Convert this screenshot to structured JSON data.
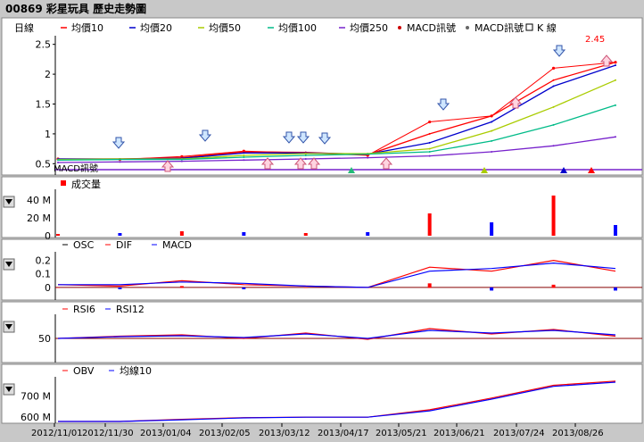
{
  "header": {
    "title": "00869 彩星玩具  歷史走勢圖"
  },
  "colors": {
    "bg": "#c8c8c8",
    "panel": "#ffffff",
    "ma10": "#ff0000",
    "ma20": "#0000cc",
    "ma50": "#aacc00",
    "ma100": "#00bb88",
    "ma250": "#7722cc",
    "up": "#ff0000",
    "down": "#0000ff"
  },
  "price_panel": {
    "period_label": "日線",
    "legend": [
      {
        "label": "均價10",
        "color": "#ff0000",
        "kind": "line"
      },
      {
        "label": "均價20",
        "color": "#0000cc",
        "kind": "line"
      },
      {
        "label": "均價50",
        "color": "#aacc00",
        "kind": "line"
      },
      {
        "label": "均價100",
        "color": "#00bb88",
        "kind": "line"
      },
      {
        "label": "均價250",
        "color": "#7722cc",
        "kind": "line"
      },
      {
        "label": "MACD訊號",
        "color": "#cc0000",
        "kind": "dot"
      },
      {
        "label": "MACD訊號",
        "color": "#666666",
        "kind": "dot"
      },
      {
        "label": "K 線",
        "color": "#000000",
        "kind": "box"
      }
    ],
    "overlap_label": "MACD訊號",
    "last_price_label": "2.45",
    "y_ticks": [
      "2.5",
      "2",
      "1.5",
      "1",
      "0.5"
    ]
  },
  "volume_panel": {
    "legend": "成交量",
    "y_ticks": [
      "40 M",
      "20 M",
      "0"
    ]
  },
  "macd_panel": {
    "legend": [
      "OSC",
      "DIF",
      "MACD"
    ],
    "y_ticks": [
      "0.2",
      "0.1",
      "0"
    ]
  },
  "rsi_panel": {
    "legend": [
      "RSI6",
      "RSI12"
    ],
    "y_ticks": [
      "50"
    ]
  },
  "obv_panel": {
    "legend": [
      "OBV",
      "均線10"
    ],
    "y_ticks": [
      "700 M",
      "600 M"
    ]
  },
  "x_axis": {
    "dates": [
      "2012/11/01",
      "2012/11/30",
      "2013/01/04",
      "2013/02/05",
      "2013/03/12",
      "2013/04/17",
      "2013/05/21",
      "2013/06/21",
      "2013/07/24",
      "2013/08/26"
    ]
  },
  "chart_data": {
    "type": "line",
    "title": "00869 彩星玩具  歷史走勢圖",
    "x": [
      "2012/11/01",
      "2012/11/30",
      "2013/01/04",
      "2013/02/05",
      "2013/03/12",
      "2013/04/17",
      "2013/05/21",
      "2013/06/21",
      "2013/07/24",
      "2013/08/26"
    ],
    "series": [
      {
        "name": "K 線",
        "values": [
          0.58,
          0.57,
          0.62,
          0.71,
          0.68,
          0.64,
          1.2,
          1.3,
          2.1,
          2.2
        ]
      },
      {
        "name": "均價10",
        "values": [
          0.58,
          0.58,
          0.6,
          0.7,
          0.69,
          0.65,
          1.0,
          1.3,
          1.9,
          2.2
        ]
      },
      {
        "name": "均價20",
        "values": [
          0.58,
          0.58,
          0.59,
          0.68,
          0.68,
          0.66,
          0.85,
          1.2,
          1.8,
          2.15
        ]
      },
      {
        "name": "均價50",
        "values": [
          0.57,
          0.58,
          0.58,
          0.64,
          0.67,
          0.67,
          0.75,
          1.05,
          1.45,
          1.9
        ]
      },
      {
        "name": "均價100",
        "values": [
          0.56,
          0.57,
          0.57,
          0.61,
          0.64,
          0.66,
          0.7,
          0.88,
          1.15,
          1.48
        ]
      },
      {
        "name": "均價250",
        "values": [
          0.52,
          0.53,
          0.54,
          0.56,
          0.58,
          0.6,
          0.63,
          0.7,
          0.8,
          0.95
        ]
      }
    ],
    "ylim": [
      0.4,
      2.6
    ],
    "last_price": 2.45,
    "volume_M": [
      2,
      3,
      5,
      4,
      3,
      4,
      25,
      15,
      45,
      12
    ],
    "volume_ylim": [
      0,
      50
    ],
    "macd": {
      "dif": [
        0.02,
        0.01,
        0.05,
        0.02,
        0.01,
        0.0,
        0.15,
        0.12,
        0.2,
        0.12
      ],
      "macd": [
        0.02,
        0.02,
        0.04,
        0.03,
        0.01,
        0.0,
        0.12,
        0.14,
        0.18,
        0.14
      ],
      "ylim": [
        -0.08,
        0.25
      ]
    },
    "rsi": {
      "rsi6": [
        50,
        55,
        58,
        50,
        62,
        48,
        72,
        60,
        70,
        55
      ],
      "rsi12": [
        50,
        54,
        56,
        52,
        60,
        50,
        68,
        62,
        68,
        58
      ],
      "ylim": [
        0,
        100
      ]
    },
    "obv_M": {
      "obv": [
        580,
        580,
        590,
        598,
        600,
        600,
        635,
        690,
        750,
        770
      ],
      "ma10": [
        580,
        580,
        588,
        597,
        600,
        600,
        630,
        685,
        745,
        765
      ],
      "ylim": [
        580,
        790
      ]
    }
  }
}
